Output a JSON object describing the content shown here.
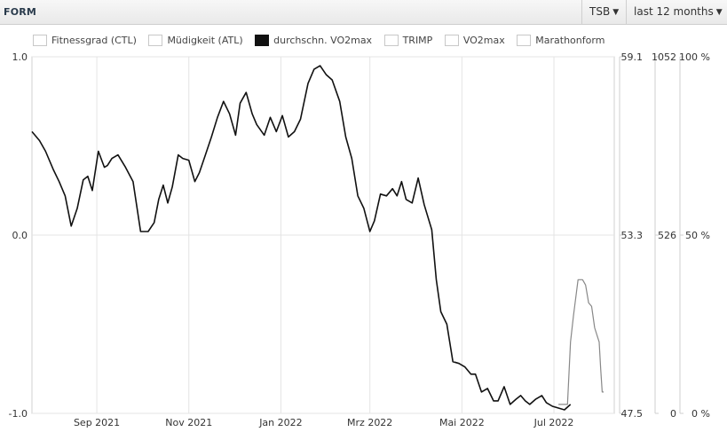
{
  "header": {
    "title": "FORM",
    "metric_select": "TSB",
    "range_select": "last 12 months"
  },
  "legend": [
    {
      "label": "Fitnessgrad (CTL)",
      "filled": false
    },
    {
      "label": "Müdigkeit (ATL)",
      "filled": false
    },
    {
      "label": "durchschn. VO2max",
      "filled": true
    },
    {
      "label": "TRIMP",
      "filled": false
    },
    {
      "label": "VO2max",
      "filled": false
    },
    {
      "label": "Marathonform",
      "filled": false
    }
  ],
  "colors": {
    "line": "#111111",
    "secondary_line": "#888888",
    "grid": "#e4e4e4",
    "plot_bg": "#ffffff"
  },
  "chart_data": {
    "type": "line",
    "title": "FORM",
    "grid": true,
    "legend_position": "top",
    "x_ticks": [
      "Sep 2021",
      "Nov 2021",
      "Jan 2022",
      "Mrz 2022",
      "Mai 2022",
      "Jul 2022"
    ],
    "x_range": [
      "2021-07-20",
      "2022-08-10"
    ],
    "ylim": [
      -1.0,
      1.0
    ],
    "y_ticks": [
      "-1.0",
      "0.0",
      "1.0"
    ],
    "right_axes": [
      {
        "ticks": [
          "47.5",
          "53.3",
          "59.1"
        ]
      },
      {
        "ticks": [
          "0",
          "526",
          "1052"
        ]
      },
      {
        "ticks": [
          "0 %",
          "50 %",
          "100 %"
        ]
      }
    ],
    "series": [
      {
        "x": [
          "2021-07-20",
          "2021-07-25",
          "2021-07-29",
          "2021-08-03",
          "2021-08-07",
          "2021-08-11",
          "2021-08-15",
          "2021-08-19",
          "2021-08-23",
          "2021-08-26",
          "2021-08-29",
          "2021-09-02",
          "2021-09-06",
          "2021-09-08",
          "2021-09-11",
          "2021-09-15",
          "2021-09-20",
          "2021-09-25",
          "2021-09-30",
          "2021-10-05",
          "2021-10-09",
          "2021-10-12",
          "2021-10-15",
          "2021-10-18",
          "2021-10-21",
          "2021-10-25",
          "2021-10-28",
          "2021-11-01",
          "2021-11-05",
          "2021-11-08",
          "2021-11-12",
          "2021-11-16",
          "2021-11-20",
          "2021-11-24",
          "2021-11-28",
          "2021-12-02",
          "2021-12-05",
          "2021-12-09",
          "2021-12-13",
          "2021-12-16",
          "2021-12-21",
          "2021-12-25",
          "2021-12-29",
          "2022-01-02",
          "2022-01-06",
          "2022-01-10",
          "2022-01-14",
          "2022-01-19",
          "2022-01-23",
          "2022-01-27",
          "2022-01-31",
          "2022-02-04",
          "2022-02-09",
          "2022-02-13",
          "2022-02-17",
          "2022-02-21",
          "2022-02-25",
          "2022-03-01",
          "2022-03-04",
          "2022-03-08",
          "2022-03-12",
          "2022-03-16",
          "2022-03-19",
          "2022-03-22",
          "2022-03-25",
          "2022-03-29",
          "2022-04-02",
          "2022-04-06",
          "2022-04-11",
          "2022-04-14",
          "2022-04-17",
          "2022-04-21",
          "2022-04-25",
          "2022-04-29",
          "2022-05-03",
          "2022-05-07",
          "2022-05-10",
          "2022-05-14",
          "2022-05-18",
          "2022-05-22",
          "2022-05-25",
          "2022-05-29",
          "2022-06-02",
          "2022-06-06",
          "2022-06-09",
          "2022-06-12",
          "2022-06-15",
          "2022-06-19",
          "2022-06-23",
          "2022-06-26",
          "2022-06-30",
          "2022-07-04",
          "2022-07-08",
          "2022-07-12"
        ],
        "values": [
          0.58,
          0.53,
          0.47,
          0.37,
          0.3,
          0.22,
          0.05,
          0.15,
          0.31,
          0.33,
          0.25,
          0.47,
          0.38,
          0.39,
          0.43,
          0.45,
          0.38,
          0.3,
          0.02,
          0.02,
          0.07,
          0.2,
          0.28,
          0.18,
          0.27,
          0.45,
          0.43,
          0.42,
          0.3,
          0.35,
          0.45,
          0.55,
          0.66,
          0.75,
          0.68,
          0.56,
          0.74,
          0.8,
          0.68,
          0.62,
          0.56,
          0.66,
          0.58,
          0.67,
          0.55,
          0.58,
          0.65,
          0.85,
          0.93,
          0.95,
          0.9,
          0.87,
          0.75,
          0.55,
          0.43,
          0.22,
          0.15,
          0.02,
          0.08,
          0.23,
          0.22,
          0.26,
          0.22,
          0.3,
          0.2,
          0.18,
          0.32,
          0.17,
          0.03,
          -0.25,
          -0.43,
          -0.5,
          -0.71,
          -0.72,
          -0.74,
          -0.78,
          -0.78,
          -0.88,
          -0.86,
          -0.93,
          -0.93,
          -0.85,
          -0.95,
          -0.92,
          -0.9,
          -0.93,
          -0.95,
          -0.92,
          -0.9,
          -0.94,
          -0.96,
          -0.97,
          -0.98,
          -0.95
        ]
      },
      {
        "x": [
          "2022-07-04",
          "2022-07-10",
          "2022-07-12",
          "2022-07-14",
          "2022-07-17",
          "2022-07-20",
          "2022-07-22",
          "2022-07-24",
          "2022-07-26",
          "2022-07-28",
          "2022-07-31",
          "2022-08-01",
          "2022-08-02",
          "2022-08-03"
        ],
        "values": [
          -0.95,
          -0.95,
          -0.6,
          -0.45,
          -0.25,
          -0.25,
          -0.28,
          -0.38,
          -0.4,
          -0.52,
          -0.6,
          -0.75,
          -0.88,
          -0.88
        ]
      }
    ]
  }
}
